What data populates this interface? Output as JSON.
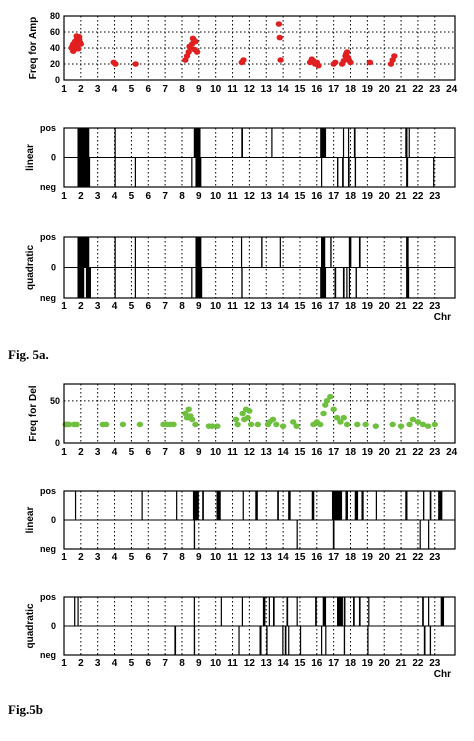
{
  "captions": {
    "fig5a": "Fig. 5a.",
    "fig5b": "Fig.5b"
  },
  "chr_labels": [
    "1",
    "2",
    "3",
    "4",
    "5",
    "6",
    "7",
    "8",
    "9",
    "10",
    "11",
    "12",
    "13",
    "14",
    "15",
    "16",
    "17",
    "18",
    "19",
    "20",
    "21",
    "22",
    "23",
    "24"
  ],
  "chr_label_rows": {
    "row1": [
      "1",
      "2",
      "3",
      "4",
      "5",
      "6",
      "7",
      "8",
      "9",
      "10",
      "11",
      "12",
      "13",
      "14",
      "15",
      "16",
      "17",
      "18",
      "19",
      "20",
      "21",
      "22",
      "23",
      "24"
    ],
    "row2": [
      "1",
      "2",
      "3",
      "4",
      "5",
      "6",
      "7",
      "8",
      "9",
      "10",
      "11",
      "12",
      "13",
      "14",
      "15",
      "16",
      "17",
      "18",
      "19",
      "20",
      "21",
      "22",
      "23"
    ],
    "row3": [
      "1",
      "2",
      "3",
      "4",
      "5",
      "6",
      "7",
      "8",
      "9",
      "10",
      "11",
      "12",
      "13",
      "14",
      "15",
      "16",
      "17",
      "18",
      "19",
      "20",
      "21",
      "22",
      "23"
    ],
    "row4": [
      "1",
      "2",
      "3",
      "4",
      "5",
      "6",
      "7",
      "8",
      "9",
      "10",
      "11",
      "12",
      "13",
      "14",
      "15",
      "16",
      "17",
      "18",
      "19",
      "20",
      "21",
      "22",
      "23",
      "24"
    ],
    "row5": [
      "1",
      "2",
      "3",
      "4",
      "5",
      "6",
      "7",
      "8",
      "9",
      "10",
      "11",
      "12",
      "13",
      "14",
      "15",
      "16",
      "17",
      "18",
      "19",
      "20",
      "21",
      "22",
      "23"
    ],
    "row6": [
      "1",
      "2",
      "3",
      "4",
      "5",
      "6",
      "7",
      "8",
      "9",
      "10",
      "11",
      "12",
      "13",
      "14",
      "15",
      "16",
      "17",
      "18",
      "19",
      "20",
      "21",
      "22",
      "23"
    ]
  },
  "chr_axis_title": "Chr",
  "colors": {
    "amp": "#e02020",
    "del": "#70c040",
    "bar": "#000000"
  },
  "chart_data": [
    {
      "type": "scatter",
      "ylabel": "Freq for Amp",
      "xlabel": "",
      "xlim": [
        1,
        24.2
      ],
      "ylim": [
        0,
        80
      ],
      "yticks": [
        0,
        20,
        40,
        60,
        80
      ],
      "grid": true,
      "series": [
        {
          "color": "#e02020",
          "x": [
            1.45,
            1.5,
            1.55,
            1.6,
            1.65,
            1.7,
            1.75,
            1.8,
            1.85,
            1.9,
            1.95,
            2.0,
            1.6,
            1.7,
            1.8,
            1.9,
            1.55,
            1.75,
            1.85,
            3.95,
            4.05,
            5.25,
            8.2,
            8.3,
            8.4,
            8.5,
            8.6,
            8.7,
            8.8,
            8.9,
            8.45,
            8.65,
            8.75,
            11.55,
            11.65,
            13.75,
            13.8,
            13.85,
            15.6,
            15.7,
            15.8,
            15.9,
            16.0,
            16.1,
            17.0,
            17.1,
            17.5,
            17.6,
            17.7,
            17.8,
            17.9,
            18.0,
            17.75,
            17.85,
            19.15,
            20.4,
            20.5,
            20.6
          ],
          "y": [
            40,
            42,
            45,
            43,
            48,
            46,
            50,
            52,
            49,
            51,
            47,
            45,
            38,
            41,
            44,
            54,
            36,
            55,
            39,
            22,
            20,
            20,
            25,
            30,
            35,
            40,
            45,
            50,
            48,
            35,
            42,
            52,
            38,
            22,
            25,
            70,
            53,
            25,
            22,
            26,
            24,
            20,
            22,
            18,
            20,
            22,
            20,
            24,
            30,
            35,
            25,
            22,
            33,
            28,
            22,
            20,
            25,
            30
          ]
        }
      ]
    },
    {
      "type": "bar",
      "ylabel": "linear",
      "yticks": [
        "pos",
        "0",
        "neg"
      ],
      "segments_pos": [
        [
          1.8,
          2.5
        ],
        [
          4.0,
          4.06
        ],
        [
          8.7,
          9.1
        ],
        [
          11.52,
          11.62
        ],
        [
          13.3,
          13.32
        ],
        [
          16.2,
          16.55
        ],
        [
          17.55,
          17.62
        ],
        [
          17.85,
          17.9
        ],
        [
          18.2,
          18.3
        ],
        [
          21.25,
          21.38
        ],
        [
          21.45,
          21.5
        ]
      ],
      "segments_neg": [
        [
          1.8,
          2.55
        ],
        [
          4.0,
          4.06
        ],
        [
          5.2,
          5.26
        ],
        [
          8.55,
          8.62
        ],
        [
          8.8,
          9.15
        ],
        [
          16.25,
          16.32
        ],
        [
          17.2,
          17.28
        ],
        [
          17.5,
          17.6
        ],
        [
          17.85,
          17.95
        ],
        [
          18.25,
          18.33
        ],
        [
          21.3,
          21.42
        ],
        [
          22.9,
          22.95
        ]
      ]
    },
    {
      "type": "bar",
      "ylabel": "quadratic",
      "yticks": [
        "pos",
        "0",
        "neg"
      ],
      "segments_pos": [
        [
          1.8,
          2.5
        ],
        [
          4.0,
          4.05
        ],
        [
          5.2,
          5.26
        ],
        [
          8.8,
          9.15
        ],
        [
          11.5,
          11.55
        ],
        [
          12.7,
          12.78
        ],
        [
          13.8,
          13.86
        ],
        [
          16.25,
          16.5
        ],
        [
          16.8,
          16.88
        ],
        [
          17.9,
          18.05
        ],
        [
          18.5,
          18.6
        ],
        [
          21.3,
          21.45
        ]
      ],
      "segments_neg": [
        [
          1.8,
          2.2
        ],
        [
          2.3,
          2.6
        ],
        [
          4.0,
          4.05
        ],
        [
          5.2,
          5.26
        ],
        [
          8.55,
          8.6
        ],
        [
          8.8,
          9.2
        ],
        [
          11.52,
          11.6
        ],
        [
          16.2,
          16.55
        ],
        [
          17.05,
          17.15
        ],
        [
          17.55,
          17.65
        ],
        [
          17.75,
          17.82
        ],
        [
          17.9,
          17.96
        ],
        [
          18.3,
          18.38
        ],
        [
          21.3,
          21.48
        ]
      ]
    },
    {
      "type": "scatter",
      "ylabel": "Freq for Del",
      "xlabel": "",
      "xlim": [
        1,
        24.2
      ],
      "ylim": [
        0,
        70
      ],
      "yticks": [
        0,
        50
      ],
      "grid": true,
      "series": [
        {
          "color": "#70c040",
          "x": [
            1.1,
            1.2,
            1.3,
            1.6,
            1.75,
            3.3,
            3.5,
            4.5,
            5.5,
            6.9,
            7.1,
            7.3,
            7.5,
            8.2,
            8.3,
            8.4,
            8.5,
            8.6,
            8.8,
            9.6,
            9.8,
            10.1,
            11.2,
            11.3,
            11.6,
            11.7,
            11.8,
            11.9,
            12.0,
            12.1,
            12.5,
            13.1,
            13.2,
            13.4,
            13.6,
            14.0,
            14.6,
            14.8,
            15.8,
            16.0,
            16.2,
            16.4,
            16.5,
            16.6,
            16.8,
            17.0,
            17.2,
            17.4,
            17.6,
            17.8,
            18.4,
            18.9,
            19.5,
            20.5,
            21.0,
            21.5,
            21.7,
            22.0,
            22.3,
            22.6,
            23.0
          ],
          "y": [
            22,
            22,
            22,
            22,
            22,
            22,
            22,
            22,
            22,
            22,
            22,
            22,
            22,
            35,
            30,
            40,
            32,
            28,
            22,
            20,
            20,
            20,
            28,
            22,
            35,
            28,
            40,
            30,
            38,
            22,
            22,
            22,
            25,
            28,
            22,
            20,
            25,
            20,
            22,
            25,
            22,
            35,
            45,
            50,
            55,
            40,
            30,
            25,
            30,
            22,
            22,
            22,
            20,
            22,
            20,
            22,
            28,
            25,
            22,
            20,
            22
          ]
        }
      ]
    },
    {
      "type": "bar",
      "ylabel": "linear",
      "yticks": [
        "pos",
        "0",
        "neg"
      ],
      "segments_pos": [
        [
          1.65,
          1.7
        ],
        [
          5.6,
          5.64
        ],
        [
          7.65,
          7.68
        ],
        [
          8.65,
          9.0
        ],
        [
          9.2,
          9.3
        ],
        [
          10.05,
          10.3
        ],
        [
          11.6,
          11.65
        ],
        [
          12.35,
          12.5
        ],
        [
          13.65,
          13.75
        ],
        [
          14.3,
          14.45
        ],
        [
          15.7,
          15.85
        ],
        [
          16.9,
          17.5
        ],
        [
          17.7,
          17.85
        ],
        [
          18.25,
          18.45
        ],
        [
          18.65,
          18.78
        ],
        [
          19.5,
          19.55
        ],
        [
          21.25,
          21.38
        ],
        [
          22.3,
          22.38
        ],
        [
          22.7,
          22.8
        ],
        [
          23.2,
          23.45
        ]
      ],
      "segments_neg": [
        [
          8.7,
          8.78
        ],
        [
          14.8,
          14.85
        ],
        [
          16.95,
          17.05
        ],
        [
          22.1,
          22.15
        ],
        [
          22.6,
          22.65
        ]
      ]
    },
    {
      "type": "bar",
      "ylabel": "quadratic",
      "yticks": [
        "pos",
        "0",
        "neg"
      ],
      "segments_pos": [
        [
          1.6,
          1.65
        ],
        [
          1.8,
          1.85
        ],
        [
          8.7,
          8.75
        ],
        [
          10.3,
          10.35
        ],
        [
          11.55,
          11.6
        ],
        [
          12.8,
          12.95
        ],
        [
          13.15,
          13.22
        ],
        [
          13.4,
          13.5
        ],
        [
          14.2,
          14.3
        ],
        [
          14.8,
          14.85
        ],
        [
          15.9,
          16.0
        ],
        [
          16.35,
          16.55
        ],
        [
          17.2,
          17.55
        ],
        [
          17.6,
          17.7
        ],
        [
          18.15,
          18.25
        ],
        [
          18.5,
          18.6
        ],
        [
          19.05,
          19.1
        ],
        [
          22.25,
          22.35
        ],
        [
          22.6,
          22.65
        ],
        [
          23.35,
          23.55
        ]
      ],
      "segments_neg": [
        [
          7.55,
          7.65
        ],
        [
          8.7,
          8.78
        ],
        [
          11.35,
          11.4
        ],
        [
          12.6,
          12.72
        ],
        [
          13.0,
          13.08
        ],
        [
          13.95,
          14.0
        ],
        [
          14.1,
          14.2
        ],
        [
          14.3,
          14.36
        ],
        [
          15.0,
          15.06
        ],
        [
          16.25,
          16.32
        ],
        [
          16.5,
          16.55
        ],
        [
          17.6,
          17.68
        ],
        [
          19.0,
          19.05
        ],
        [
          22.35,
          22.45
        ],
        [
          22.7,
          22.78
        ]
      ]
    }
  ]
}
